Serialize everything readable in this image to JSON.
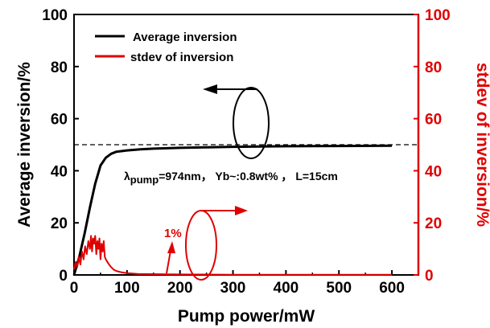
{
  "chart_data": {
    "type": "line",
    "x_label": "Pump power/mW",
    "y_label_left": "Average inversion/%",
    "y_label_right": "stdev of inversion/%",
    "x_range": [
      0,
      650
    ],
    "y_range_left": [
      0,
      100
    ],
    "y_range_right": [
      0,
      100
    ],
    "x_ticks": [
      0,
      100,
      200,
      300,
      400,
      500,
      600
    ],
    "y_ticks_left": [
      0,
      20,
      40,
      60,
      80,
      100
    ],
    "y_ticks_right": [
      0,
      20,
      40,
      60,
      80,
      100
    ],
    "legend": {
      "placement": "top-left",
      "entries": [
        {
          "label": "Average inversion",
          "color": "#000000"
        },
        {
          "label": "stdev of inversion",
          "color": "#e00000"
        }
      ]
    },
    "reference_line": {
      "y": 50,
      "style": "dashed",
      "color": "#000000"
    },
    "series": [
      {
        "name": "Average inversion",
        "axis": "left",
        "color": "#000000",
        "x": [
          0,
          10,
          20,
          30,
          40,
          50,
          60,
          70,
          80,
          100,
          125,
          150,
          200,
          250,
          300,
          400,
          500,
          600
        ],
        "y": [
          0,
          7,
          16,
          26,
          35,
          42,
          45,
          46.5,
          47.3,
          47.8,
          48.2,
          48.5,
          48.8,
          49.0,
          49.2,
          49.4,
          49.5,
          49.6
        ]
      },
      {
        "name": "stdev of inversion",
        "axis": "right",
        "color": "#e00000",
        "x": [
          0,
          3,
          6,
          9,
          12,
          15,
          18,
          21,
          24,
          27,
          30,
          32,
          34,
          36,
          38,
          40,
          42,
          44,
          46,
          48,
          50,
          52,
          54,
          56,
          58,
          60,
          63,
          66,
          70,
          75,
          80,
          90,
          100,
          120,
          150,
          200,
          300,
          400,
          500,
          600
        ],
        "y": [
          2,
          5,
          3,
          7,
          4,
          9,
          6,
          11,
          8,
          13,
          10,
          15,
          9,
          14,
          12,
          15,
          8,
          13,
          10,
          14,
          6,
          12,
          9,
          13,
          7,
          6,
          5,
          4,
          3,
          2,
          1.5,
          1,
          0.7,
          0.4,
          0.3,
          0.2,
          0.1,
          0.1,
          0.1,
          0.1
        ]
      }
    ],
    "annotations": {
      "params_text": "=974nm， Yb~:0.8wt% ， L=15cm",
      "params_symbol": "λ",
      "params_subscript": "pump",
      "percent_label": "1%"
    }
  }
}
